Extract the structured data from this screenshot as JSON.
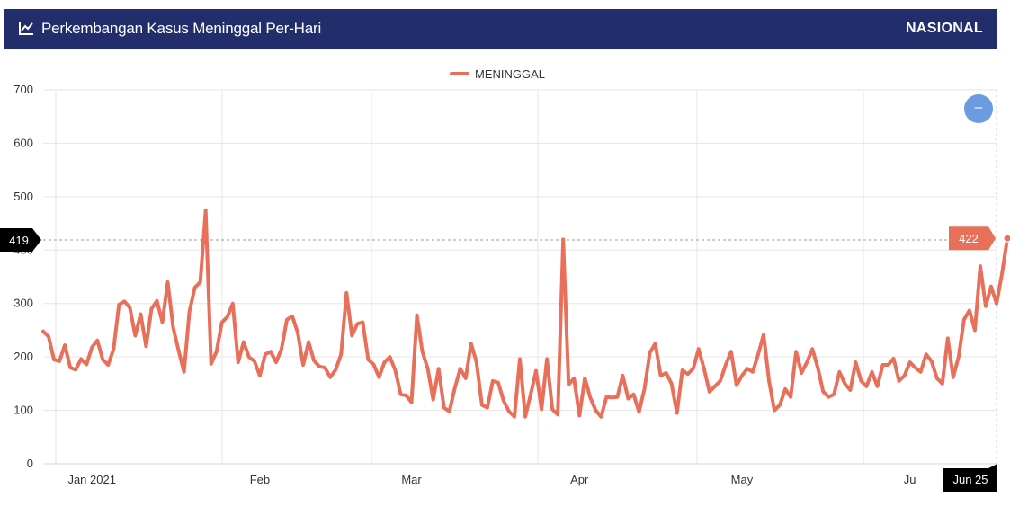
{
  "header": {
    "title": "Perkembangan Kasus Meninggal Per-Hari",
    "scope": "NASIONAL",
    "icon": "line-chart-icon"
  },
  "legend": {
    "label": "MENINGGAL",
    "color": "#e8705a"
  },
  "zoom": {
    "icon": "minus-icon",
    "label": "–"
  },
  "crosshair": {
    "y_value_label": "419",
    "point_value_label": "422",
    "date_label": "Jun 25"
  },
  "colors": {
    "header_bg": "#222d6b",
    "series": "#e8705a",
    "zoom": "#6b9be0"
  },
  "chart_data": {
    "type": "line",
    "title": "Perkembangan Kasus Meninggal Per-Hari",
    "x_ticks": [
      "Jan 2021",
      "Feb",
      "Mar",
      "Apr",
      "May",
      "Ju"
    ],
    "x_tick_days": [
      9,
      40,
      68,
      99,
      129,
      160
    ],
    "y_ticks": [
      0,
      100,
      200,
      300,
      400,
      500,
      600,
      700
    ],
    "ylim": [
      0,
      700
    ],
    "x_range_days": [
      0,
      176
    ],
    "x_start_date": "2020-12-31",
    "grid": true,
    "legend_position": "top-center",
    "series": [
      {
        "name": "MENINGGAL",
        "color": "#e8705a",
        "values": [
          248,
          238,
          195,
          192,
          222,
          180,
          176,
          196,
          186,
          218,
          231,
          195,
          185,
          215,
          298,
          304,
          292,
          240,
          280,
          220,
          290,
          305,
          265,
          340,
          255,
          212,
          172,
          285,
          330,
          340,
          475,
          187,
          210,
          265,
          275,
          300,
          190,
          228,
          200,
          192,
          165,
          205,
          210,
          190,
          215,
          270,
          276,
          245,
          185,
          228,
          193,
          182,
          180,
          162,
          176,
          205,
          320,
          240,
          262,
          265,
          195,
          186,
          162,
          190,
          200,
          175,
          130,
          128,
          115,
          278,
          210,
          178,
          120,
          178,
          105,
          98,
          142,
          178,
          160,
          225,
          190,
          110,
          105,
          155,
          152,
          118,
          98,
          88,
          196,
          88,
          130,
          174,
          102,
          196,
          102,
          92,
          420,
          148,
          160,
          90,
          160,
          124,
          100,
          88,
          125,
          124,
          125,
          165,
          122,
          130,
          97,
          140,
          208,
          225,
          165,
          170,
          150,
          95,
          175,
          168,
          178,
          215,
          178,
          135,
          145,
          155,
          185,
          210,
          147,
          165,
          178,
          172,
          205,
          242,
          155,
          100,
          110,
          140,
          125,
          210,
          170,
          190,
          215,
          180,
          135,
          125,
          130,
          172,
          150,
          138,
          190,
          155,
          145,
          172,
          145,
          185,
          185,
          197,
          155,
          165,
          190,
          180,
          172,
          205,
          192,
          160,
          150,
          235,
          162,
          200,
          270,
          287,
          250,
          370,
          295,
          332,
          300,
          355,
          422
        ]
      }
    ]
  }
}
